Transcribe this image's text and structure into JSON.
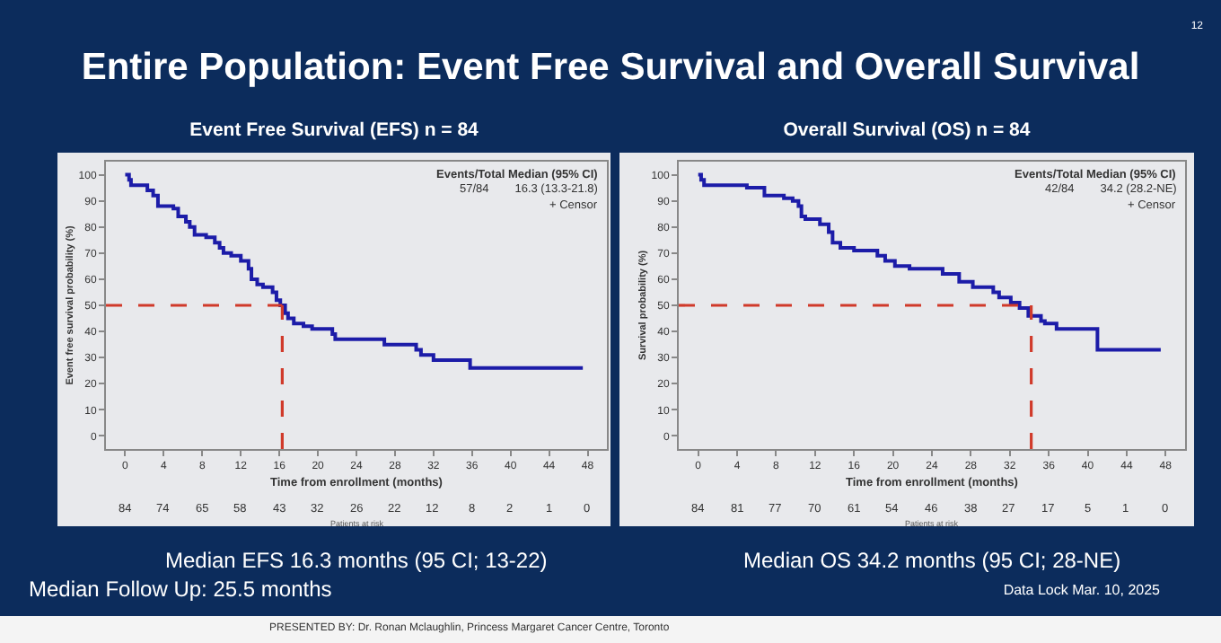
{
  "chart_data": [
    {
      "type": "other",
      "title": "Entire Population: Event Free Survival and Overall Survival",
      "annotations": [
        "12",
        "Median Follow Up: 25.5 months",
        "Data Lock Mar. 10, 2025",
        "PRESENTED BY: Dr. Ronan Mclaughlin, Princess Margaret Cancer Centre, Toronto"
      ]
    },
    {
      "type": "step",
      "title": "Event Free Survival (EFS) n = 84",
      "xlabel": "Time from enrollment (months)",
      "ylabel": "Event free survival probability (%)",
      "xlim": [
        -2,
        50
      ],
      "xticks": [
        0,
        4,
        8,
        12,
        16,
        20,
        24,
        28,
        32,
        36,
        40,
        44,
        48
      ],
      "ylim": [
        -5,
        105
      ],
      "yticks": [
        0,
        10,
        20,
        30,
        40,
        50,
        60,
        70,
        80,
        90,
        100
      ],
      "series": [
        {
          "color": "#1c1ca8",
          "x": [
            0,
            0.4,
            0.6,
            2.3,
            2.9,
            3.4,
            5,
            5.5,
            6.3,
            6.7,
            7.2,
            8.4,
            9.3,
            9.8,
            10.2,
            11,
            12,
            12.8,
            13.1,
            13.7,
            14.3,
            15.3,
            15.7,
            16.1,
            16.6,
            16.9,
            17.5,
            18.5,
            19.4,
            21.5,
            21.8,
            26.9,
            30.2,
            30.7,
            32,
            35.8,
            47.5
          ],
          "values": [
            100,
            98,
            96,
            94,
            92,
            88,
            87,
            84,
            82,
            80,
            77,
            76,
            74,
            72,
            70,
            69,
            67,
            64,
            60,
            58,
            57,
            55,
            52,
            50,
            47,
            45,
            43,
            42,
            41,
            39,
            37,
            35,
            33,
            31,
            29,
            26,
            26
          ]
        }
      ],
      "ref_lines": [
        {
          "axis": "y",
          "value": 50,
          "color": "#d03a2a",
          "line_style": "dashed"
        },
        {
          "axis": "x",
          "value": 16.3,
          "color": "#d03a2a",
          "line_style": "dashed"
        }
      ],
      "annotations": [
        "Events/Total Median (95% CI)",
        "57/84        16.3 (13.3-21.8)",
        "+ Censor",
        "Patients at risk",
        "84",
        "74",
        "65",
        "58",
        "43",
        "32",
        "26",
        "22",
        "12",
        "8",
        "2",
        "1",
        "0",
        "Median EFS 16.3 months (95 CI; 13-22)"
      ]
    },
    {
      "type": "step",
      "title": "Overall Survival (OS) n = 84",
      "xlabel": "Time from enrollment (months)",
      "ylabel": "Survival probability (%)",
      "xlim": [
        -2,
        50
      ],
      "xticks": [
        0,
        4,
        8,
        12,
        16,
        20,
        24,
        28,
        32,
        36,
        40,
        44,
        48
      ],
      "ylim": [
        -5,
        105
      ],
      "yticks": [
        0,
        10,
        20,
        30,
        40,
        50,
        60,
        70,
        80,
        90,
        100
      ],
      "series": [
        {
          "color": "#1c1ca8",
          "x": [
            0,
            0.3,
            0.6,
            5,
            6.8,
            8.8,
            9.7,
            10.3,
            10.6,
            11,
            12.5,
            13.4,
            13.8,
            14.6,
            16,
            18.4,
            19.2,
            20.2,
            21.7,
            25.1,
            26.8,
            28.2,
            30.3,
            30.9,
            32.1,
            33,
            33.9,
            35.2,
            35.6,
            36.8,
            41,
            47.5
          ],
          "values": [
            100,
            98,
            96,
            95,
            92,
            91,
            90,
            88,
            84,
            83,
            81,
            78,
            74,
            72,
            71,
            69,
            67,
            65,
            64,
            62,
            59,
            57,
            55,
            53,
            51,
            49,
            46,
            44,
            43,
            41,
            33,
            33
          ]
        }
      ],
      "ref_lines": [
        {
          "axis": "y",
          "value": 50,
          "color": "#d03a2a",
          "line_style": "dashed"
        },
        {
          "axis": "x",
          "value": 34.2,
          "color": "#d03a2a",
          "line_style": "dashed"
        }
      ],
      "annotations": [
        "Events/Total Median (95% CI)",
        "42/84        34.2 (28.2-NE)",
        "+ Censor",
        "Patients at risk",
        "84",
        "81",
        "77",
        "70",
        "61",
        "54",
        "46",
        "38",
        "27",
        "17",
        "5",
        "1",
        "0",
        "Median OS 34.2 months (95 CI; 28-NE)"
      ]
    }
  ]
}
